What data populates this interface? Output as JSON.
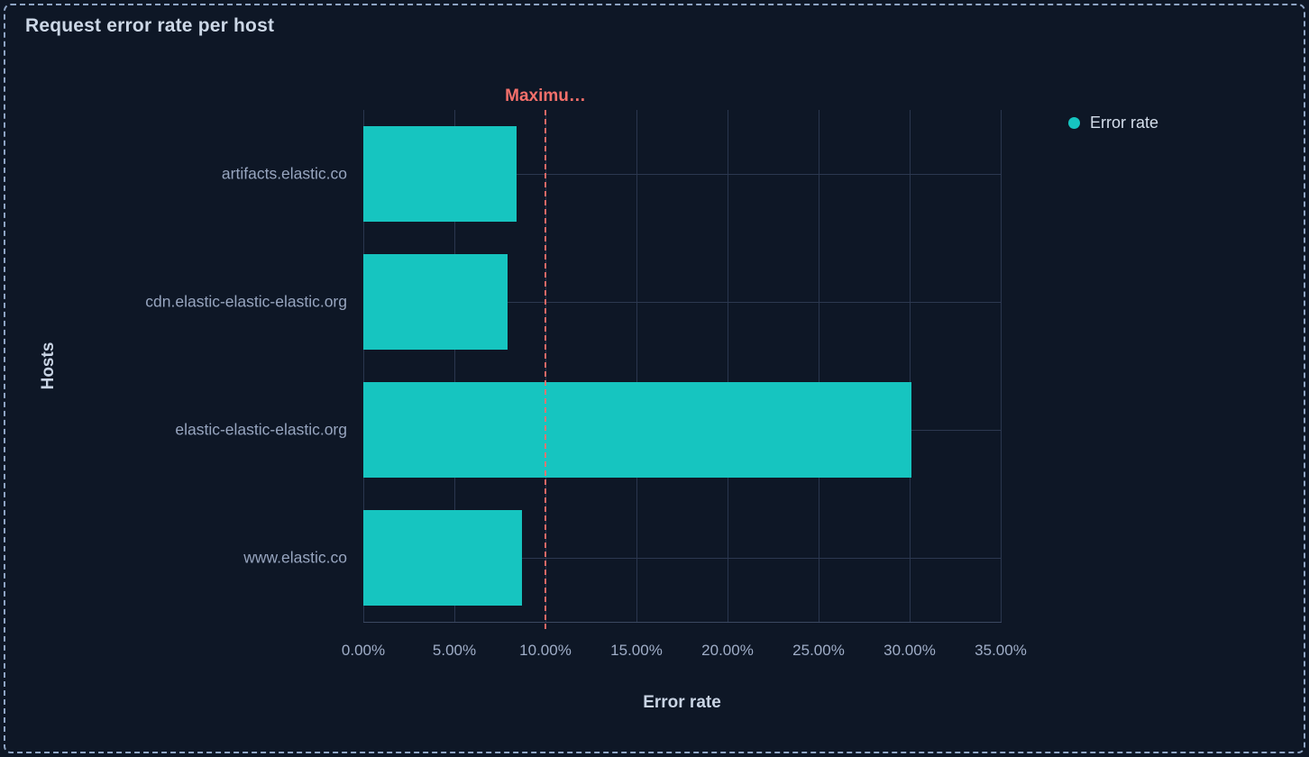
{
  "panel": {
    "title": "Request error rate per host"
  },
  "legend": {
    "position": "right",
    "items": [
      {
        "label": "Error rate",
        "color": "#16c5c0"
      }
    ]
  },
  "colors": {
    "background": "#0e1726",
    "panel_border": "#8ea4c4",
    "bar": "#16c5c0",
    "threshold": "#f5706b",
    "gridline": "#2a364e",
    "title_text": "#ccd7e6",
    "tick_text": "#9fadc7"
  },
  "chart_data": {
    "type": "bar",
    "orientation": "horizontal",
    "title": "Request error rate per host",
    "xlabel": "Error rate",
    "ylabel": "Hosts",
    "categories": [
      "artifacts.elastic.co",
      "cdn.elastic-elastic-elastic.org",
      "elastic-elastic-elastic.org",
      "www.elastic.co"
    ],
    "series": [
      {
        "name": "Error rate",
        "unit": "%",
        "color": "#16c5c0",
        "values": [
          8.4,
          7.9,
          30.1,
          8.7
        ]
      }
    ],
    "xlim": [
      0,
      35
    ],
    "x_tick_values": [
      0,
      5,
      10,
      15,
      20,
      25,
      30,
      35
    ],
    "x_tick_labels": [
      "0.00%",
      "5.00%",
      "10.00%",
      "15.00%",
      "20.00%",
      "25.00%",
      "30.00%",
      "35.00%"
    ],
    "grid": true,
    "legend_position": "right",
    "threshold": {
      "label": "Maximu…",
      "value": 10,
      "color": "#f5706b",
      "style": "dashed"
    }
  }
}
